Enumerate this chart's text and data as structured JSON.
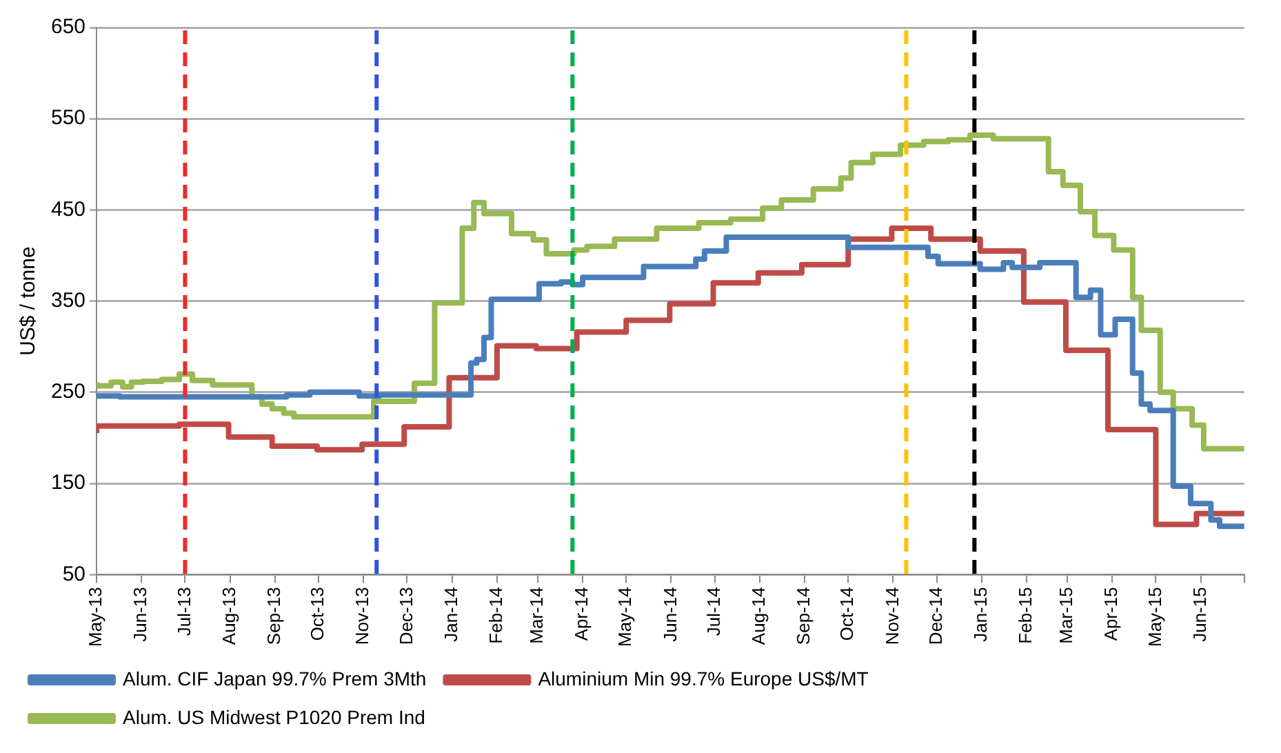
{
  "chart_data": {
    "type": "step",
    "ylabel": "US$ / tonne",
    "xlim": [
      "2013-05-01",
      "2015-07-01"
    ],
    "xticks": [
      {
        "value": "2013-05-01",
        "label": "May-13"
      },
      {
        "value": "2013-06-01",
        "label": "Jun-13"
      },
      {
        "value": "2013-07-01",
        "label": "Jul-13"
      },
      {
        "value": "2013-08-01",
        "label": "Aug-13"
      },
      {
        "value": "2013-09-01",
        "label": "Sep-13"
      },
      {
        "value": "2013-10-01",
        "label": "Oct-13"
      },
      {
        "value": "2013-11-01",
        "label": "Nov-13"
      },
      {
        "value": "2013-12-01",
        "label": "Dec-13"
      },
      {
        "value": "2014-01-01",
        "label": "Jan-14"
      },
      {
        "value": "2014-02-01",
        "label": "Feb-14"
      },
      {
        "value": "2014-03-01",
        "label": "Mar-14"
      },
      {
        "value": "2014-04-01",
        "label": "Apr-14"
      },
      {
        "value": "2014-05-01",
        "label": "May-14"
      },
      {
        "value": "2014-06-01",
        "label": "Jun-14"
      },
      {
        "value": "2014-07-01",
        "label": "Jul-14"
      },
      {
        "value": "2014-08-01",
        "label": "Aug-14"
      },
      {
        "value": "2014-09-01",
        "label": "Sep-14"
      },
      {
        "value": "2014-10-01",
        "label": "Oct-14"
      },
      {
        "value": "2014-11-01",
        "label": "Nov-14"
      },
      {
        "value": "2014-12-01",
        "label": "Dec-14"
      },
      {
        "value": "2015-01-01",
        "label": "Jan-15"
      },
      {
        "value": "2015-02-01",
        "label": "Feb-15"
      },
      {
        "value": "2015-03-01",
        "label": "Mar-15"
      },
      {
        "value": "2015-04-01",
        "label": "Apr-15"
      },
      {
        "value": "2015-05-01",
        "label": "May-15"
      },
      {
        "value": "2015-06-01",
        "label": "Jun-15"
      },
      {
        "value": "2015-07-01",
        "label": null
      }
    ],
    "ylim": [
      50,
      650
    ],
    "yticks": [
      50,
      150,
      250,
      350,
      450,
      550,
      650
    ],
    "grid": "y",
    "legend": "bottom",
    "marker": "none",
    "ref_lines": [
      {
        "axis": "x",
        "value": "2013-07-01",
        "color": "#ee2a2a",
        "line_style": "dashed"
      },
      {
        "axis": "x",
        "value": "2013-11-10",
        "color": "#2f55dd",
        "line_style": "dashed"
      },
      {
        "axis": "x",
        "value": "2014-03-25",
        "color": "#00b050",
        "line_style": "dashed"
      },
      {
        "axis": "x",
        "value": "2014-11-10",
        "color": "#ffc000",
        "line_style": "dashed"
      },
      {
        "axis": "x",
        "value": "2014-12-27",
        "color": "#000000",
        "line_style": "dashed"
      }
    ],
    "series": [
      {
        "name": "Alum. CIF Japan 99.7% Prem 3Mth",
        "color": "#4a7ebb",
        "x": [
          "2013-05-01",
          "2013-05-17",
          "2013-09-09",
          "2013-09-25",
          "2013-10-29",
          "2013-11-12",
          "2014-01-14",
          "2014-01-18",
          "2014-01-23",
          "2014-01-28",
          "2014-03-02",
          "2014-03-17",
          "2014-03-25",
          "2014-04-01",
          "2014-05-13",
          "2014-06-18",
          "2014-06-24",
          "2014-07-09",
          "2014-10-01",
          "2014-11-25",
          "2014-12-02",
          "2014-12-31",
          "2015-01-16",
          "2015-01-22",
          "2015-02-10",
          "2015-03-07",
          "2015-03-17",
          "2015-03-24",
          "2015-04-03",
          "2015-04-15",
          "2015-04-21",
          "2015-04-27",
          "2015-05-13",
          "2015-05-25",
          "2015-06-08",
          "2015-06-14",
          "2015-07-01"
        ],
        "values": [
          248,
          246,
          245,
          247,
          250,
          246,
          247,
          282,
          286,
          310,
          352,
          369,
          371,
          368,
          376,
          388,
          396,
          405,
          420,
          409,
          399,
          391,
          385,
          392,
          387,
          392,
          354,
          362,
          313,
          330,
          271,
          237,
          230,
          147,
          128,
          110,
          103
        ]
      },
      {
        "name": "Aluminium Min 99.7% Europe US$/MT",
        "color": "#be4b48",
        "x": [
          "2013-05-01",
          "2013-06-27",
          "2013-07-31",
          "2013-08-30",
          "2013-09-30",
          "2013-10-31",
          "2013-11-29",
          "2013-12-30",
          "2014-02-01",
          "2014-02-28",
          "2014-03-28",
          "2014-05-01",
          "2014-05-31",
          "2014-06-30",
          "2014-07-31",
          "2014-08-30",
          "2014-10-01",
          "2014-10-31",
          "2014-11-27",
          "2014-12-31",
          "2015-01-30",
          "2015-02-28",
          "2015-03-29",
          "2015-05-01",
          "2015-05-29",
          "2015-06-28",
          "2015-07-01"
        ],
        "values": [
          205,
          213,
          215,
          201,
          191,
          187,
          193,
          212,
          266,
          301,
          298,
          316,
          329,
          347,
          370,
          381,
          390,
          418,
          430,
          418,
          405,
          349,
          296,
          209,
          105,
          117,
          117
        ]
      },
      {
        "name": "Alum. US Midwest P1020 Prem Ind",
        "color": "#98b954",
        "x": [
          "2013-05-01",
          "2013-05-11",
          "2013-05-19",
          "2013-05-25",
          "2013-06-02",
          "2013-06-15",
          "2013-06-27",
          "2013-07-06",
          "2013-07-20",
          "2013-08-16",
          "2013-08-23",
          "2013-08-30",
          "2013-09-07",
          "2013-09-14",
          "2013-11-08",
          "2013-12-06",
          "2013-12-20",
          "2014-01-08",
          "2014-01-16",
          "2014-01-23",
          "2014-02-11",
          "2014-02-26",
          "2014-03-07",
          "2014-03-26",
          "2014-04-04",
          "2014-04-23",
          "2014-05-22",
          "2014-06-20",
          "2014-07-12",
          "2014-08-03",
          "2014-08-16",
          "2014-09-07",
          "2014-09-26",
          "2014-10-03",
          "2014-10-18",
          "2014-11-06",
          "2014-11-22",
          "2014-12-09",
          "2014-12-24",
          "2015-01-09",
          "2015-02-16",
          "2015-02-26",
          "2015-03-10",
          "2015-03-20",
          "2015-04-02",
          "2015-04-15",
          "2015-04-21",
          "2015-05-04",
          "2015-05-13",
          "2015-05-26",
          "2015-06-03",
          "2015-06-11",
          "2015-07-01"
        ],
        "values": [
          261,
          257,
          261,
          256,
          261,
          262,
          264,
          270,
          263,
          258,
          245,
          237,
          232,
          227,
          223,
          240,
          260,
          348,
          430,
          458,
          446,
          424,
          417,
          402,
          406,
          410,
          418,
          430,
          436,
          440,
          452,
          461,
          473,
          485,
          502,
          511,
          521,
          525,
          527,
          532,
          528,
          492,
          477,
          448,
          422,
          406,
          354,
          318,
          250,
          232,
          214,
          188,
          188
        ]
      }
    ]
  }
}
